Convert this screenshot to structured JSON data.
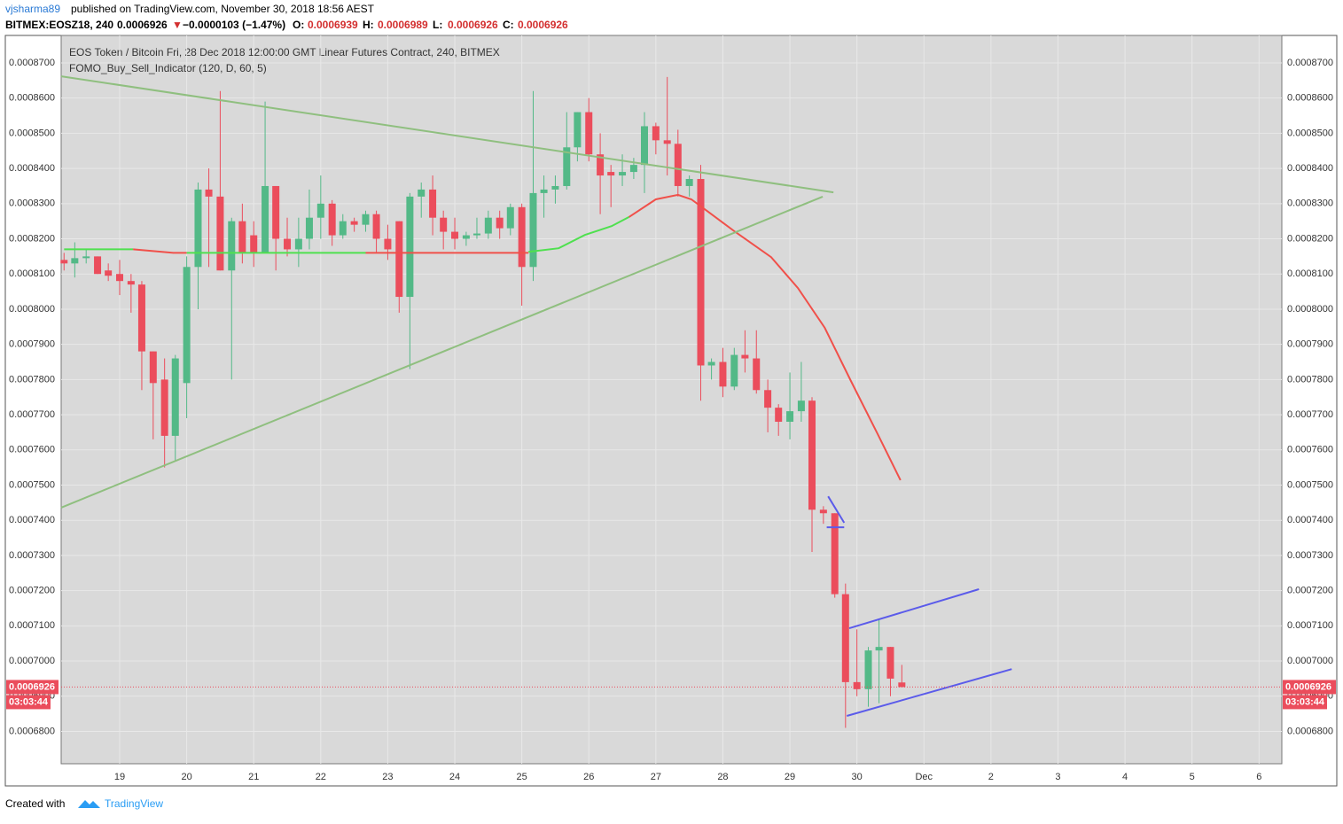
{
  "header": {
    "user": "vjsharma89",
    "published": "published on TradingView.com, November 30, 2018 18:56 AEST",
    "symbol": "BITMEX:EOSZ18, 240",
    "arrow": "▼",
    "change": "−0.0000103 (−1.47%)",
    "ohlc_labels": [
      "O:",
      "H:",
      "L:",
      "C:"
    ]
  },
  "footer": {
    "created": "Created with",
    "brand": "TradingView"
  },
  "chart_data": {
    "type": "candlestick",
    "title": "EOS Token / Bitcoin Fri, 28 Dec 2018 12:00:00 GMT Linear Futures Contract, 240, BITMEX",
    "indicator_label": "FOMO_Buy_Sell_Indicator (120, D, 60, 5)",
    "countdown": "03:03:44",
    "up_color": "#53b987",
    "down_color": "#eb4d5c",
    "grid": true,
    "xlim": [
      18.127,
      36.34
    ],
    "xticks": [
      19,
      20,
      21,
      22,
      23,
      24,
      25,
      26,
      27,
      28,
      29,
      30,
      {
        "value": 31,
        "label": "Dec"
      },
      {
        "value": 32,
        "label": "2"
      },
      {
        "value": 33,
        "label": "3"
      },
      {
        "value": 34,
        "label": "4"
      },
      {
        "value": 35,
        "label": "5"
      },
      {
        "value": 36,
        "label": "6"
      }
    ],
    "ylim": [
      0.0006708,
      0.0008778
    ],
    "yticks": [
      {
        "value": 0.00068,
        "label": "0.0006800"
      },
      {
        "value": 0.00069,
        "label": "0.0006900"
      },
      {
        "value": 0.0007,
        "label": "0.0007000"
      },
      {
        "value": 0.00071,
        "label": "0.0007100"
      },
      {
        "value": 0.00072,
        "label": "0.0007200"
      },
      {
        "value": 0.00073,
        "label": "0.0007300"
      },
      {
        "value": 0.00074,
        "label": "0.0007400"
      },
      {
        "value": 0.00075,
        "label": "0.0007500"
      },
      {
        "value": 0.00076,
        "label": "0.0007600"
      },
      {
        "value": 0.00077,
        "label": "0.0007700"
      },
      {
        "value": 0.00078,
        "label": "0.0007800"
      },
      {
        "value": 0.00079,
        "label": "0.0007900"
      },
      {
        "value": 0.0008,
        "label": "0.0008000"
      },
      {
        "value": 0.00081,
        "label": "0.0008100"
      },
      {
        "value": 0.00082,
        "label": "0.0008200"
      },
      {
        "value": 0.00083,
        "label": "0.0008300"
      },
      {
        "value": 0.00084,
        "label": "0.0008400"
      },
      {
        "value": 0.00085,
        "label": "0.0008500"
      },
      {
        "value": 0.00086,
        "label": "0.0008600"
      },
      {
        "value": 0.00087,
        "label": "0.0008700"
      }
    ],
    "x": [
      18.17,
      18.33,
      18.5,
      18.67,
      18.83,
      19,
      19.17,
      19.33,
      19.5,
      19.67,
      19.83,
      20,
      20.17,
      20.33,
      20.5,
      20.67,
      20.83,
      21,
      21.17,
      21.33,
      21.5,
      21.67,
      21.83,
      22,
      22.17,
      22.33,
      22.5,
      22.67,
      22.83,
      23,
      23.17,
      23.33,
      23.5,
      23.67,
      23.83,
      24,
      24.17,
      24.33,
      24.5,
      24.67,
      24.83,
      25,
      25.17,
      25.33,
      25.5,
      25.67,
      25.83,
      26,
      26.17,
      26.33,
      26.5,
      26.67,
      26.83,
      27,
      27.17,
      27.33,
      27.5,
      27.67,
      27.83,
      28,
      28.17,
      28.33,
      28.5,
      28.67,
      28.83,
      29,
      29.17,
      29.33,
      29.5,
      29.67,
      29.83,
      30,
      30.17,
      30.33,
      30.5,
      30.67
    ],
    "open": [
      0.000814,
      0.000813,
      0.0008145,
      0.000815,
      0.000811,
      0.00081,
      0.000808,
      0.000807,
      0.000788,
      0.00078,
      0.000764,
      0.000779,
      0.000812,
      0.000834,
      0.000832,
      0.000811,
      0.000825,
      0.000821,
      0.000816,
      0.000835,
      0.00082,
      0.000817,
      0.00082,
      0.000826,
      0.00083,
      0.000821,
      0.000825,
      0.000824,
      0.000827,
      0.00082,
      0.000825,
      0.0008035,
      0.000832,
      0.000834,
      0.000826,
      0.000822,
      0.00082,
      0.000821,
      0.0008215,
      0.000826,
      0.000823,
      0.000829,
      0.000812,
      0.000833,
      0.000834,
      0.000835,
      0.000846,
      0.000856,
      0.000844,
      0.000839,
      0.000838,
      0.000839,
      0.000841,
      0.000852,
      0.000848,
      0.000847,
      0.000835,
      0.000837,
      0.000784,
      0.000785,
      0.000778,
      0.000787,
      0.000786,
      0.000777,
      0.000772,
      0.000768,
      0.000771,
      0.000774,
      0.000743,
      0.000742,
      0.000719,
      0.000694,
      0.000692,
      0.000703,
      0.000704,
      0.0006939
    ],
    "high": [
      0.000816,
      0.000819,
      0.000817,
      0.000815,
      0.000813,
      0.000814,
      0.00081,
      0.000808,
      0.000788,
      0.000786,
      0.000787,
      0.000815,
      0.000836,
      0.00084,
      0.000862,
      0.000826,
      0.00083,
      0.000825,
      0.000859,
      0.000835,
      0.000826,
      0.000826,
      0.000834,
      0.000838,
      0.000831,
      0.000827,
      0.000826,
      0.000828,
      0.000828,
      0.000824,
      0.000825,
      0.000833,
      0.000836,
      0.000838,
      0.000828,
      0.000826,
      0.000822,
      0.000826,
      0.000828,
      0.000828,
      0.00083,
      0.00083,
      0.000862,
      0.000838,
      0.000838,
      0.000856,
      0.000856,
      0.00086,
      0.00085,
      0.000841,
      0.000844,
      0.000843,
      0.000856,
      0.000853,
      0.000866,
      0.000851,
      0.000838,
      0.000841,
      0.000786,
      0.000789,
      0.000789,
      0.000794,
      0.000794,
      0.00078,
      0.000773,
      0.000782,
      0.000785,
      0.000775,
      0.000744,
      0.000742,
      0.000722,
      0.000709,
      0.000704,
      0.000712,
      0.000704,
      0.0006989
    ],
    "low": [
      0.000811,
      0.000809,
      0.000813,
      0.00081,
      0.000808,
      0.000804,
      0.000799,
      0.000777,
      0.000763,
      0.000755,
      0.000757,
      0.000769,
      0.0008,
      0.000812,
      0.000811,
      0.00078,
      0.000813,
      0.000812,
      0.000816,
      0.000811,
      0.000815,
      0.000812,
      0.000817,
      0.00082,
      0.000818,
      0.00082,
      0.000822,
      0.000822,
      0.000816,
      0.000814,
      0.000799,
      0.000783,
      0.000826,
      0.000821,
      0.000817,
      0.000817,
      0.000818,
      0.00082,
      0.00082,
      0.00082,
      0.000821,
      0.000801,
      0.000808,
      0.000826,
      0.00083,
      0.000834,
      0.000842,
      0.000842,
      0.000827,
      0.000829,
      0.000835,
      0.000837,
      0.000833,
      0.000844,
      0.000838,
      0.000832,
      0.000832,
      0.000774,
      0.00078,
      0.000775,
      0.000777,
      0.000782,
      0.000776,
      0.000765,
      0.000764,
      0.000763,
      0.000768,
      0.000731,
      0.000739,
      0.000718,
      0.000681,
      0.00069,
      0.000687,
      0.000688,
      0.00069,
      0.0006926
    ],
    "close": [
      0.000813,
      0.0008145,
      0.000815,
      0.00081,
      0.0008095,
      0.000808,
      0.000807,
      0.000788,
      0.000779,
      0.000764,
      0.000786,
      0.000812,
      0.000834,
      0.000832,
      0.000811,
      0.000825,
      0.000816,
      0.000816,
      0.000835,
      0.00082,
      0.000817,
      0.00082,
      0.000826,
      0.00083,
      0.000821,
      0.000825,
      0.000824,
      0.000827,
      0.00082,
      0.000817,
      0.0008035,
      0.000832,
      0.000834,
      0.000826,
      0.000822,
      0.00082,
      0.000821,
      0.0008215,
      0.000826,
      0.000823,
      0.000829,
      0.000812,
      0.000833,
      0.000834,
      0.000835,
      0.000846,
      0.000856,
      0.000844,
      0.000838,
      0.000838,
      0.000839,
      0.000841,
      0.000852,
      0.000848,
      0.000847,
      0.000835,
      0.000837,
      0.000784,
      0.000785,
      0.000778,
      0.000787,
      0.000786,
      0.000777,
      0.000772,
      0.000768,
      0.000771,
      0.000774,
      0.000743,
      0.000742,
      0.000719,
      0.000694,
      0.000692,
      0.000703,
      0.000704,
      0.000695,
      0.0006926
    ],
    "lines": [
      {
        "color": "#4fe04f",
        "x": [
          18.17,
          19.2
        ],
        "values": [
          0.000817,
          0.000817
        ]
      },
      {
        "color": "#f0504a",
        "x": [
          19.2,
          19.8,
          20
        ],
        "values": [
          0.000817,
          0.000816,
          0.000816
        ]
      },
      {
        "color": "#4fe04f",
        "x": [
          20,
          22.67
        ],
        "values": [
          0.000816,
          0.000816
        ]
      },
      {
        "color": "#f0504a",
        "x": [
          22.67,
          25.1
        ],
        "values": [
          0.000816,
          0.000816
        ]
      },
      {
        "color": "#4fe04f",
        "x": [
          25.1,
          25.55,
          25.94,
          26.34,
          26.6
        ],
        "values": [
          0.0008163,
          0.0008173,
          0.0008211,
          0.0008236,
          0.0008262
        ]
      },
      {
        "color": "#f0504a",
        "x": [
          26.6,
          27,
          27.33,
          27.53,
          27.8,
          28.19,
          28.72,
          29.12,
          29.52,
          29.91,
          30.31,
          30.65
        ],
        "values": [
          0.0008262,
          0.0008312,
          0.0008325,
          0.0008312,
          0.0008274,
          0.0008219,
          0.0008148,
          0.000806,
          0.0007947,
          0.0007796,
          0.0007645,
          0.0007514
        ]
      }
    ],
    "drawings": [
      {
        "color": "#8fbf7f",
        "x": [
          18.127,
          29.65
        ],
        "values": [
          0.0008662,
          0.0008332
        ]
      },
      {
        "color": "#8fbf7f",
        "x": [
          18.127,
          29.49
        ],
        "values": [
          0.0007436,
          0.000832
        ]
      },
      {
        "color": "#5b5bea",
        "x": [
          29.886,
          31.82
        ],
        "values": [
          0.0007093,
          0.0007204
        ]
      },
      {
        "color": "#5b5bea",
        "x": [
          29.85,
          32.31
        ],
        "values": [
          0.0006844,
          0.0006977
        ]
      },
      {
        "color": "#5b5bea",
        "x": [
          29.57,
          29.81
        ],
        "values": [
          0.0007468,
          0.0007393
        ]
      },
      {
        "color": "#5b5bea",
        "x": [
          29.55,
          29.81
        ],
        "values": [
          0.000738,
          0.000738
        ]
      }
    ]
  }
}
